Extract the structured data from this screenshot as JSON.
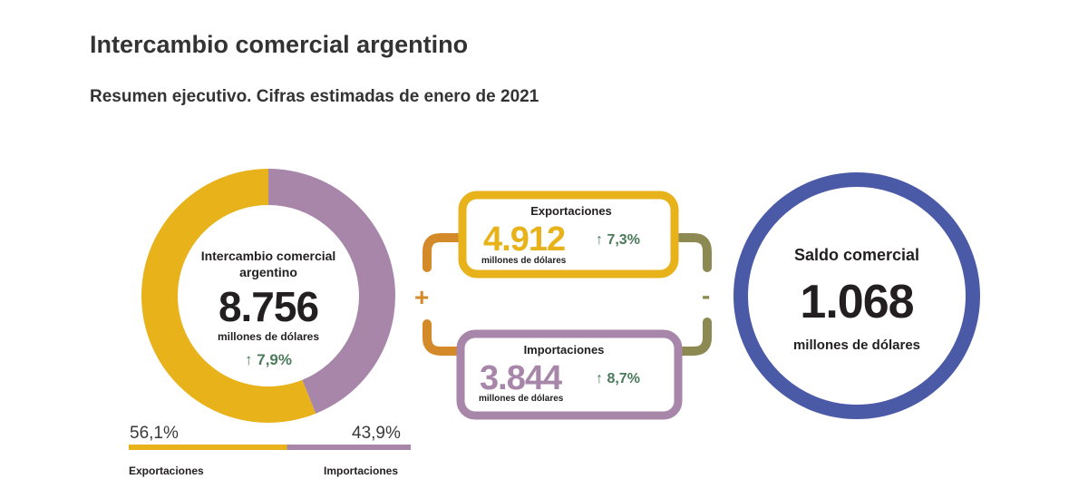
{
  "title": "Intercambio comercial argentino",
  "subtitle": "Resumen ejecutivo. Cifras estimadas de enero de 2021",
  "colors": {
    "exports": "#e8b21b",
    "imports": "#a786aa",
    "balance": "#4b5aa6",
    "bracket_plus": "#d58a2a",
    "bracket_minus": "#8c8a52",
    "positive_change": "#4a7a5a"
  },
  "donut": {
    "title": "Intercambio comercial argentino",
    "value": "8.756",
    "unit": "millones de dólares",
    "change": "7,9%",
    "change_icon": "arrow-up-icon"
  },
  "share": {
    "exports_pct": "56,1%",
    "imports_pct": "43,9%",
    "exports_label": "Exportaciones",
    "imports_label": "Importaciones"
  },
  "exports_box": {
    "title": "Exportaciones",
    "value": "4.912",
    "unit": "millones de dólares",
    "change": "7,3%"
  },
  "imports_box": {
    "title": "Importaciones",
    "value": "3.844",
    "unit": "millones de dólares",
    "change": "8,7%"
  },
  "operators": {
    "plus": "+",
    "minus": "-"
  },
  "balance": {
    "title": "Saldo comercial",
    "value": "1.068",
    "unit": "millones de dólares"
  },
  "chart_data": {
    "type": "pie",
    "categories": [
      "Exportaciones",
      "Importaciones"
    ],
    "values": [
      56.1,
      43.9
    ],
    "total": 8756,
    "series": [
      {
        "name": "Exportaciones",
        "value": 4912,
        "change_pct": 7.3
      },
      {
        "name": "Importaciones",
        "value": 3844,
        "change_pct": 8.7
      }
    ],
    "balance": 1068
  }
}
